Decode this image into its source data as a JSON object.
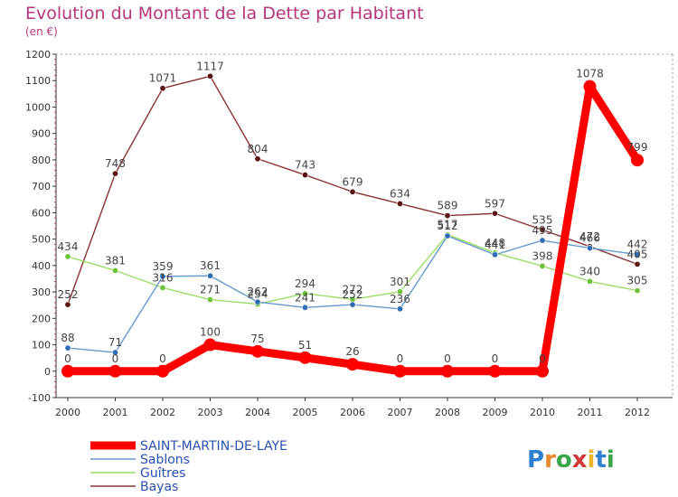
{
  "chart_data": {
    "type": "line",
    "title": "Evolution du Montant de la Dette par Habitant",
    "subtitle": "(en €)",
    "categories": [
      "2000",
      "2001",
      "2002",
      "2003",
      "2004",
      "2005",
      "2006",
      "2007",
      "2008",
      "2009",
      "2010",
      "2011",
      "2012"
    ],
    "ylim": [
      -100,
      1200
    ],
    "yticks": [
      -100,
      0,
      100,
      200,
      300,
      400,
      500,
      600,
      700,
      800,
      900,
      1000,
      1100,
      1200
    ],
    "grid": false,
    "legend_position": "bottom-left",
    "series": [
      {
        "name": "SAINT-MARTIN-DE-LAYE",
        "color": "#ff0000",
        "values": [
          0,
          0,
          0,
          100,
          75,
          51,
          26,
          0,
          0,
          0,
          0,
          1078,
          799
        ]
      },
      {
        "name": "Sablons",
        "color": "#6699cc",
        "values": [
          88,
          71,
          359,
          361,
          262,
          241,
          252,
          236,
          512,
          441,
          495,
          466,
          442
        ]
      },
      {
        "name": "Guîtres",
        "color": "#99dd66",
        "values": [
          434,
          381,
          316,
          271,
          254,
          294,
          272,
          301,
          517,
          448,
          398,
          340,
          305
        ]
      },
      {
        "name": "Bayas",
        "color": "#883333",
        "values": [
          252,
          748,
          1071,
          1117,
          804,
          743,
          679,
          634,
          589,
          597,
          535,
          472,
          405
        ]
      }
    ]
  },
  "logo": {
    "text": "Proxiti"
  }
}
